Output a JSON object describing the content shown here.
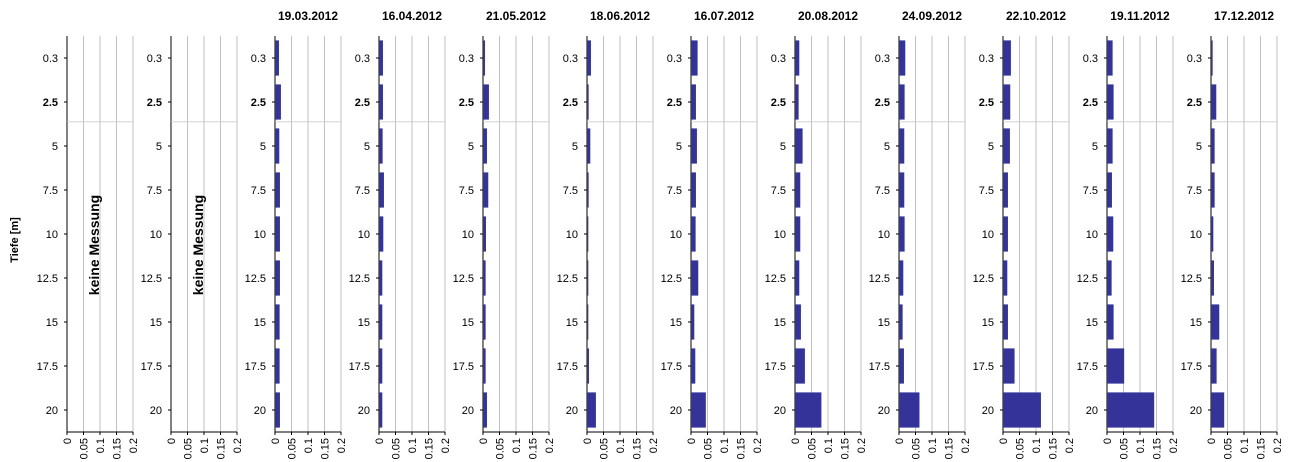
{
  "chart_data": {
    "type": "bar",
    "orientation": "horizontal",
    "ylabel": "Tiefe [m]",
    "depths": [
      "0.3",
      "2.5",
      "5",
      "7.5",
      "10",
      "12.5",
      "15",
      "17.5",
      "20"
    ],
    "xlim": [
      0,
      0.2
    ],
    "xticks": [
      "0",
      "0.05",
      "0.1",
      "0.15",
      "0.2"
    ],
    "bar_color": "#333399",
    "panels": [
      {
        "title": "",
        "note": "keine Messung",
        "values": null
      },
      {
        "title": "",
        "note": "keine Messung",
        "values": null
      },
      {
        "title": "19.03.2012",
        "note": "",
        "values": [
          0.012,
          0.018,
          0.013,
          0.015,
          0.015,
          0.015,
          0.014,
          0.014,
          0.015
        ]
      },
      {
        "title": "16.04.2012",
        "note": "",
        "values": [
          0.012,
          0.012,
          0.011,
          0.015,
          0.013,
          0.01,
          0.01,
          0.01,
          0.01
        ]
      },
      {
        "title": "21.05.2012",
        "note": "",
        "values": [
          0.006,
          0.018,
          0.012,
          0.016,
          0.009,
          0.008,
          0.008,
          0.008,
          0.012
        ]
      },
      {
        "title": "18.06.2012",
        "note": "",
        "values": [
          0.012,
          0.005,
          0.01,
          0.005,
          0.004,
          0.004,
          0.004,
          0.006,
          0.027
        ]
      },
      {
        "title": "16.07.2012",
        "note": "",
        "values": [
          0.02,
          0.015,
          0.018,
          0.015,
          0.014,
          0.022,
          0.01,
          0.013,
          0.045
        ]
      },
      {
        "title": "20.08.2012",
        "note": "",
        "values": [
          0.013,
          0.011,
          0.023,
          0.016,
          0.016,
          0.013,
          0.018,
          0.03,
          0.08
        ]
      },
      {
        "title": "24.09.2012",
        "note": "",
        "values": [
          0.019,
          0.017,
          0.016,
          0.016,
          0.017,
          0.013,
          0.011,
          0.015,
          0.062
        ]
      },
      {
        "title": "22.10.2012",
        "note": "",
        "values": [
          0.024,
          0.022,
          0.021,
          0.015,
          0.015,
          0.013,
          0.015,
          0.035,
          0.115
        ]
      },
      {
        "title": "19.11.2012",
        "note": "",
        "values": [
          0.017,
          0.02,
          0.017,
          0.015,
          0.019,
          0.014,
          0.02,
          0.052,
          0.143
        ]
      },
      {
        "title": "17.12.2012",
        "note": "",
        "values": [
          0.005,
          0.016,
          0.011,
          0.011,
          0.007,
          0.009,
          0.025,
          0.017,
          0.04
        ]
      }
    ]
  }
}
